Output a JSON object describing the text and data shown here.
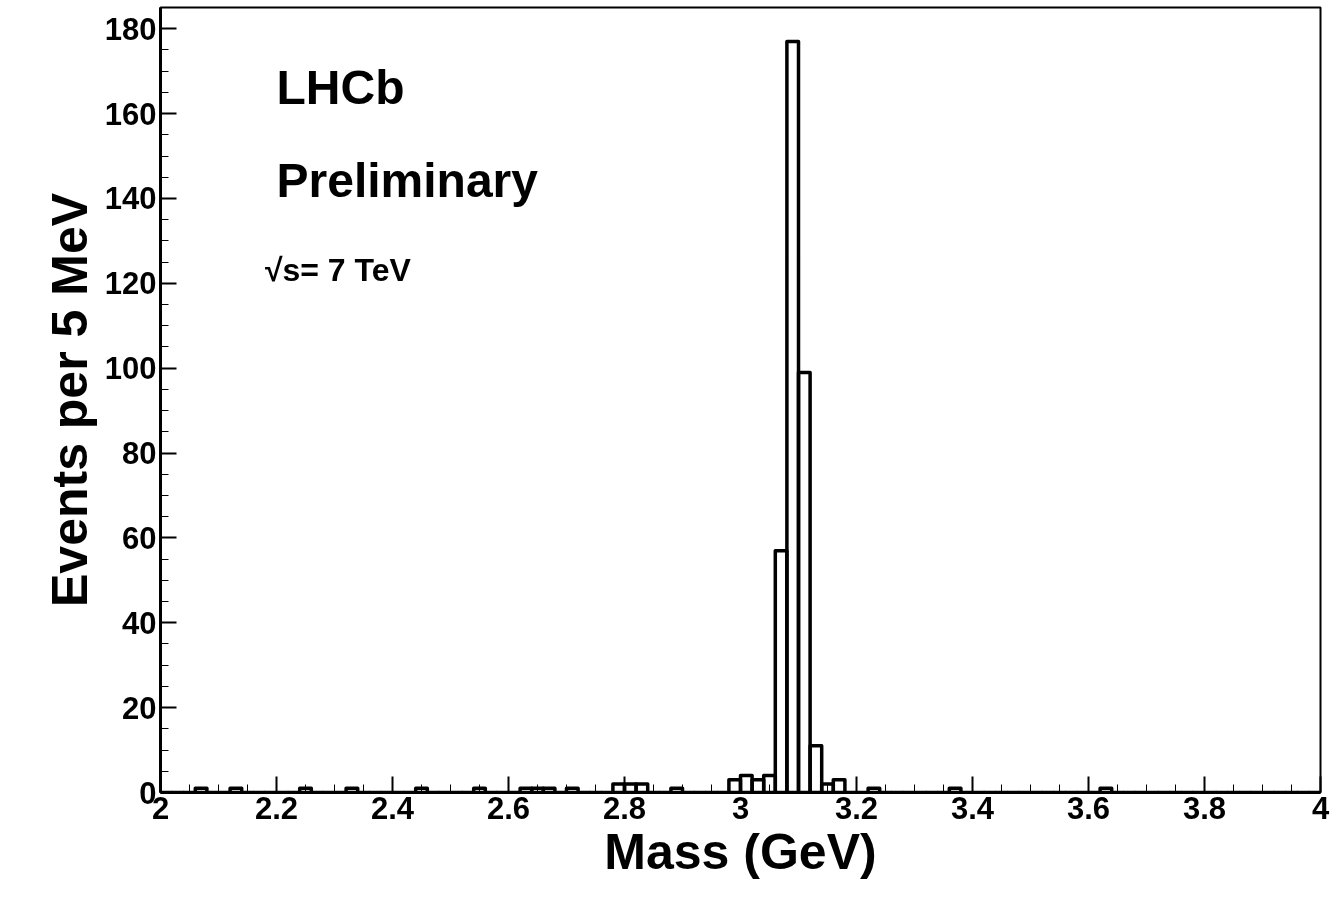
{
  "chart_data": {
    "type": "histogram",
    "xlabel": "Mass (GeV)",
    "ylabel": "Events per 5 MeV",
    "annotations": [
      "LHCb",
      "Preliminary",
      "√s= 7 TeV"
    ],
    "bins": [
      2.0,
      2.02,
      2.04,
      2.06,
      2.08,
      2.1,
      2.12,
      2.14,
      2.16,
      2.18,
      2.2,
      2.22,
      2.24,
      2.26,
      2.28,
      2.3,
      2.32,
      2.34,
      2.36,
      2.38,
      2.4,
      2.42,
      2.44,
      2.46,
      2.48,
      2.5,
      2.52,
      2.54,
      2.56,
      2.58,
      2.6,
      2.62,
      2.64,
      2.66,
      2.68,
      2.7,
      2.72,
      2.74,
      2.76,
      2.78,
      2.8,
      2.82,
      2.84,
      2.86,
      2.88,
      2.9,
      2.92,
      2.94,
      2.96,
      2.98,
      3.0,
      3.02,
      3.04,
      3.06,
      3.08,
      3.1,
      3.12,
      3.14,
      3.16,
      3.18,
      3.2,
      3.22,
      3.24,
      3.26,
      3.28,
      3.3,
      3.32,
      3.34,
      3.36,
      3.38,
      3.4,
      3.42,
      3.44,
      3.46,
      3.48,
      3.5,
      3.52,
      3.54,
      3.56,
      3.58,
      3.6,
      3.62,
      3.64,
      3.66,
      3.68,
      3.7,
      3.72,
      3.74,
      3.76,
      3.78,
      3.8,
      3.82,
      3.84,
      3.86,
      3.88,
      3.9,
      3.92,
      3.94,
      3.96,
      3.98,
      4.0
    ],
    "values": [
      0,
      0,
      0,
      1,
      0,
      0,
      1,
      0,
      0,
      0,
      0,
      0,
      1,
      0,
      0,
      0,
      1,
      0,
      0,
      0,
      0,
      0,
      1,
      0,
      0,
      0,
      0,
      1,
      0,
      0,
      0,
      1,
      1,
      1,
      0,
      1,
      0,
      0,
      0,
      2,
      2,
      2,
      0,
      0,
      1,
      0,
      0,
      0,
      0,
      3,
      4,
      3,
      4,
      57,
      177,
      99,
      11,
      2,
      3,
      0,
      0,
      1,
      0,
      0,
      0,
      0,
      0,
      0,
      1,
      0,
      0,
      0,
      0,
      0,
      0,
      0,
      0,
      0,
      0,
      0,
      0,
      1,
      0,
      0,
      0,
      0,
      0,
      0,
      0,
      0,
      0,
      0,
      0,
      0,
      0,
      0,
      0,
      0,
      0,
      0
    ],
    "color": "#000000",
    "xlim": [
      2,
      4
    ],
    "ylim": [
      0,
      185
    ],
    "xticks": [
      2,
      2.2,
      2.4,
      2.6,
      2.8,
      3,
      3.2,
      3.4,
      3.6,
      3.8,
      4
    ],
    "yticks": [
      0,
      20,
      40,
      60,
      80,
      100,
      120,
      140,
      160,
      180
    ],
    "grid": false
  }
}
